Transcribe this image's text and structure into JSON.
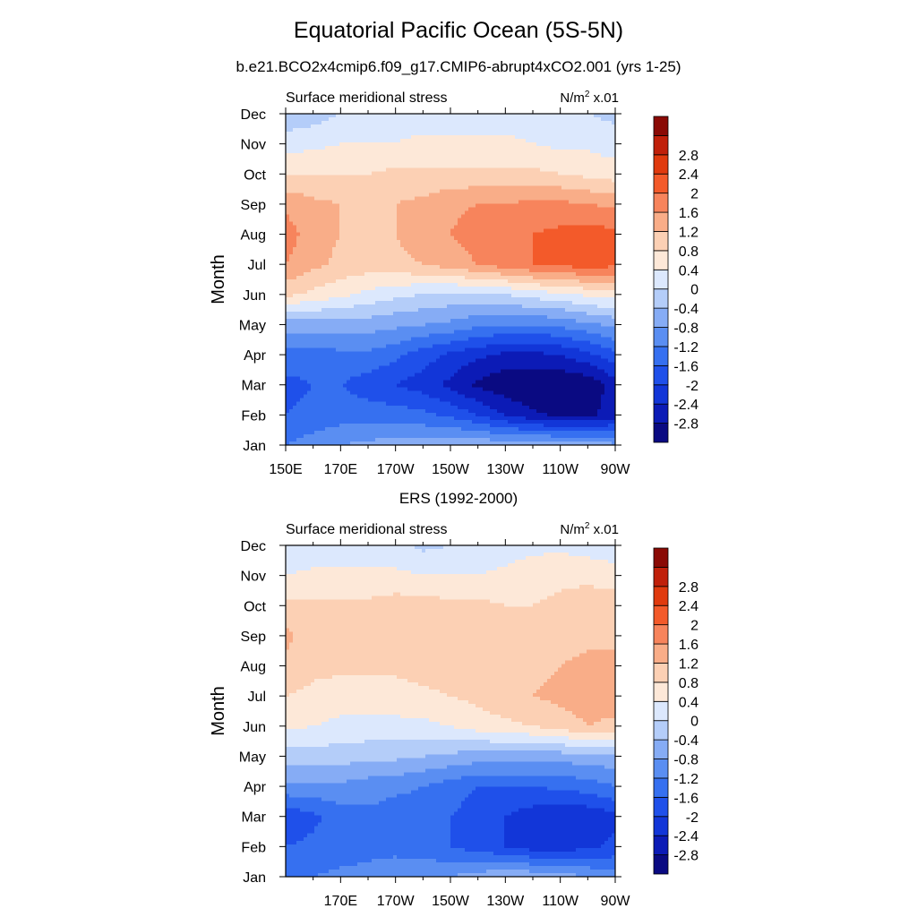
{
  "title": "Equatorial Pacific Ocean (5S-5N)",
  "colors": [
    "#0a0a82",
    "#0c1bb6",
    "#1236d8",
    "#1f50ea",
    "#3670f0",
    "#5a8ef2",
    "#86acf5",
    "#b4cdf9",
    "#dce8fd",
    "#fde8d8",
    "#fcd0b4",
    "#f9ad88",
    "#f7845c",
    "#f35a2a",
    "#e03a0e",
    "#c0200a",
    "#8a0a05"
  ],
  "contour_levels": [
    -2.8,
    -2.4,
    -2.0,
    -1.6,
    -1.2,
    -0.8,
    -0.4,
    0,
    0.4,
    0.8,
    1.2,
    1.6,
    2.0,
    2.4,
    2.8
  ],
  "chart_data": [
    {
      "type": "heatmap",
      "title": "b.e21.BCO2x4cmip6.f09_g17.CMIP6-abrupt4xCO2.001 (yrs 1-25)",
      "left_label": "Surface meridional stress",
      "right_label": "N/m",
      "right_label_sup": "2",
      "right_label_suffix": " x.01",
      "ylabel": "Month",
      "xlabel": "",
      "x_ticks": [
        "150E",
        "170E",
        "170W",
        "150W",
        "130W",
        "110W",
        "90W"
      ],
      "x_range": [
        150,
        270
      ],
      "y_ticks": [
        "Jan",
        "Feb",
        "Mar",
        "Apr",
        "May",
        "Jun",
        "Jul",
        "Aug",
        "Sep",
        "Oct",
        "Nov",
        "Dec"
      ],
      "colorbar_labels": [
        "-2.8",
        "-2.4",
        "-2",
        "-1.6",
        "-1.2",
        "-0.8",
        "-0.4",
        "0",
        "0.4",
        "0.8",
        "1.2",
        "1.6",
        "2",
        "2.4",
        "2.8"
      ],
      "lon": [
        150,
        160,
        170,
        180,
        190,
        200,
        210,
        220,
        230,
        240,
        250,
        260,
        270
      ],
      "z": [
        [
          -1.2,
          -1.0,
          -0.8,
          -0.7,
          -0.6,
          -0.6,
          -0.5,
          -0.5,
          -0.5,
          -0.5,
          -0.5,
          -0.6,
          -0.7
        ],
        [
          -1.6,
          -1.5,
          -1.4,
          -1.4,
          -1.4,
          -1.5,
          -1.7,
          -2.0,
          -2.4,
          -2.7,
          -2.9,
          -2.9,
          -2.6
        ],
        [
          -1.7,
          -1.6,
          -1.6,
          -1.8,
          -2.0,
          -2.2,
          -2.5,
          -2.9,
          -3.1,
          -3.2,
          -3.2,
          -3.1,
          -2.6
        ],
        [
          -1.4,
          -1.4,
          -1.3,
          -1.3,
          -1.5,
          -1.8,
          -2.1,
          -2.3,
          -2.5,
          -2.5,
          -2.4,
          -2.1,
          -1.7
        ],
        [
          -0.6,
          -0.6,
          -0.6,
          -0.6,
          -0.7,
          -0.8,
          -0.9,
          -1.1,
          -1.2,
          -1.2,
          -1.1,
          -0.9,
          -0.7
        ],
        [
          0.9,
          0.7,
          0.5,
          0.3,
          0.1,
          0.0,
          -0.1,
          -0.1,
          0.0,
          0.2,
          0.3,
          0.5,
          0.6
        ],
        [
          1.6,
          1.3,
          1.1,
          1.0,
          1.1,
          1.2,
          1.4,
          1.6,
          1.8,
          2.0,
          2.1,
          2.2,
          2.1
        ],
        [
          1.8,
          1.4,
          1.2,
          1.1,
          1.2,
          1.4,
          1.6,
          1.8,
          1.9,
          2.0,
          2.1,
          2.2,
          2.1
        ],
        [
          1.5,
          1.3,
          1.2,
          1.1,
          1.2,
          1.3,
          1.5,
          1.6,
          1.6,
          1.7,
          1.7,
          1.6,
          1.5
        ],
        [
          0.8,
          0.8,
          0.8,
          0.8,
          0.9,
          0.9,
          0.9,
          0.9,
          0.9,
          0.9,
          0.8,
          0.7,
          0.6
        ],
        [
          0.2,
          0.3,
          0.4,
          0.4,
          0.4,
          0.5,
          0.5,
          0.5,
          0.5,
          0.4,
          0.3,
          0.3,
          0.2
        ],
        [
          -0.3,
          -0.2,
          0.0,
          0.1,
          0.2,
          0.2,
          0.2,
          0.2,
          0.2,
          0.1,
          0.1,
          0.0,
          -0.1
        ]
      ]
    },
    {
      "type": "heatmap",
      "title": "ERS (1992-2000)",
      "left_label": "Surface meridional stress",
      "right_label": "N/m",
      "right_label_sup": "2",
      "right_label_suffix": " x.01",
      "ylabel": "Month",
      "xlabel": "",
      "x_ticks": [
        "170E",
        "170W",
        "150W",
        "130W",
        "110W",
        "90W"
      ],
      "x_range": [
        150,
        270
      ],
      "y_ticks": [
        "Jan",
        "Feb",
        "Mar",
        "Apr",
        "May",
        "Jun",
        "Jul",
        "Aug",
        "Sep",
        "Oct",
        "Nov",
        "Dec"
      ],
      "colorbar_labels": [
        "-2.8",
        "-2.4",
        "-2",
        "-1.6",
        "-1.2",
        "-0.8",
        "-0.4",
        "0",
        "0.4",
        "0.8",
        "1.2",
        "1.6",
        "2",
        "2.4",
        "2.8"
      ],
      "lon": [
        150,
        160,
        170,
        180,
        190,
        200,
        210,
        220,
        230,
        240,
        250,
        260,
        270
      ],
      "z": [
        [
          -1.4,
          -1.2,
          -1.1,
          -1.1,
          -1.0,
          -0.9,
          -0.8,
          -0.6,
          -0.5,
          -0.5,
          -0.6,
          -0.8,
          -1.0
        ],
        [
          -1.6,
          -1.5,
          -1.4,
          -1.3,
          -1.3,
          -1.4,
          -1.6,
          -1.8,
          -2.0,
          -2.2,
          -2.2,
          -2.1,
          -1.9
        ],
        [
          -1.9,
          -1.7,
          -1.4,
          -1.3,
          -1.4,
          -1.4,
          -1.6,
          -1.8,
          -2.0,
          -2.2,
          -2.3,
          -2.3,
          -2.1
        ],
        [
          -0.9,
          -0.9,
          -0.9,
          -1.0,
          -1.1,
          -1.2,
          -1.4,
          -1.6,
          -1.6,
          -1.6,
          -1.5,
          -1.4,
          -1.2
        ],
        [
          -0.2,
          -0.2,
          -0.2,
          -0.3,
          -0.3,
          -0.4,
          -0.5,
          -0.6,
          -0.6,
          -0.6,
          -0.6,
          -0.6,
          -0.5
        ],
        [
          0.5,
          0.4,
          0.3,
          0.3,
          0.3,
          0.3,
          0.4,
          0.6,
          0.7,
          0.8,
          1.0,
          1.2,
          1.1
        ],
        [
          0.8,
          0.7,
          0.6,
          0.6,
          0.6,
          0.7,
          0.8,
          0.9,
          1.1,
          1.2,
          1.3,
          1.4,
          1.4
        ],
        [
          1.1,
          0.9,
          0.9,
          0.9,
          0.9,
          1.0,
          1.0,
          1.0,
          1.0,
          1.1,
          1.2,
          1.3,
          1.3
        ],
        [
          1.3,
          1.0,
          1.0,
          1.0,
          0.9,
          0.9,
          1.0,
          1.1,
          1.0,
          0.9,
          1.0,
          1.1,
          1.1
        ],
        [
          0.9,
          0.9,
          0.9,
          0.9,
          1.0,
          1.0,
          0.9,
          0.9,
          0.8,
          0.8,
          0.9,
          1.0,
          1.0
        ],
        [
          0.4,
          0.5,
          0.5,
          0.5,
          0.5,
          0.4,
          0.4,
          0.4,
          0.5,
          0.6,
          0.7,
          0.7,
          0.6
        ],
        [
          0.0,
          0.1,
          0.2,
          0.2,
          0.1,
          -0.1,
          0.0,
          0.1,
          0.2,
          0.3,
          0.3,
          0.2,
          0.1
        ]
      ]
    }
  ]
}
